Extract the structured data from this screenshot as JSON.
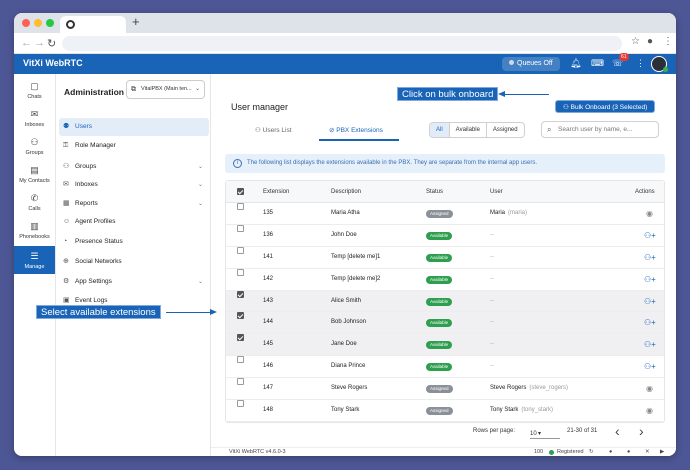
{
  "browser": {
    "traffic_colors": [
      "#ff5f57",
      "#febc2e",
      "#28c840"
    ],
    "new_tab": "+",
    "back": "←",
    "forward": "→",
    "reload": "↻",
    "star": "☆",
    "profile": "●",
    "menu": "⋮"
  },
  "appbar": {
    "title": "VitXi WebRTC",
    "queues_label": "Queues Off",
    "notification_count": "61",
    "dialpad_label": "⌨"
  },
  "rail": [
    {
      "label": "Chats",
      "icon": "chat-icon",
      "glyph": "▢"
    },
    {
      "label": "Inboxes",
      "icon": "inbox-icon",
      "glyph": "✉"
    },
    {
      "label": "Groups",
      "icon": "groups-icon",
      "glyph": "⚇"
    },
    {
      "label": "My Contacts",
      "icon": "contacts-icon",
      "glyph": "▤"
    },
    {
      "label": "Calls",
      "icon": "phone-icon",
      "glyph": "✆"
    },
    {
      "label": "Phonebooks",
      "icon": "phonebook-icon",
      "glyph": "▥"
    },
    {
      "label": "Manage",
      "icon": "manage-icon",
      "glyph": "☰"
    }
  ],
  "sidenav": {
    "title": "Administration",
    "tenant_select": "VitalPBX (Main ten...",
    "items": [
      {
        "label": "Users",
        "glyph": "⚉",
        "chevron": ""
      },
      {
        "label": "Role Manager",
        "glyph": "⚿",
        "chevron": ""
      },
      {
        "label": "Groups",
        "glyph": "⚇",
        "chevron": "⌄"
      },
      {
        "label": "Inboxes",
        "glyph": "✉",
        "chevron": "⌄"
      },
      {
        "label": "Reports",
        "glyph": "▦",
        "chevron": "⌄"
      },
      {
        "label": "Agent Profiles",
        "glyph": "☺",
        "chevron": ""
      },
      {
        "label": "Presence Status",
        "glyph": "◔",
        "chevron": ""
      },
      {
        "label": "Social Networks",
        "glyph": "⊕",
        "chevron": ""
      },
      {
        "label": "App Settings",
        "glyph": "⚙",
        "chevron": "⌄"
      },
      {
        "label": "Event Logs",
        "glyph": "▣",
        "chevron": ""
      }
    ]
  },
  "main": {
    "title": "User manager",
    "bulk_button": "Bulk Onboard (3 Selected)",
    "tabs": [
      "Users List",
      "PBX Extensions"
    ],
    "filters": [
      "All",
      "Available",
      "Assigned"
    ],
    "search_placeholder": "Search user by name, e...",
    "info_text": "The following list displays the extensions available in the PBX. They are separate from the internal app users.",
    "columns": [
      "Extension",
      "Description",
      "Status",
      "User",
      "Actions"
    ],
    "rows": [
      {
        "ext": "135",
        "desc": "Maria Atha",
        "status": "Assigned",
        "user": "Maria",
        "user_sub": "(maria)",
        "checked": false
      },
      {
        "ext": "136",
        "desc": "John Doe",
        "status": "Available",
        "user": "--",
        "user_sub": "",
        "checked": false
      },
      {
        "ext": "141",
        "desc": "Temp [delete me]1",
        "status": "Available",
        "user": "--",
        "user_sub": "",
        "checked": false
      },
      {
        "ext": "142",
        "desc": "Temp [delete me]2",
        "status": "Available",
        "user": "--",
        "user_sub": "",
        "checked": false
      },
      {
        "ext": "143",
        "desc": "Alice Smith",
        "status": "Available",
        "user": "--",
        "user_sub": "",
        "checked": true
      },
      {
        "ext": "144",
        "desc": "Bob Johnson",
        "status": "Available",
        "user": "--",
        "user_sub": "",
        "checked": true
      },
      {
        "ext": "145",
        "desc": "Jane Doe",
        "status": "Available",
        "user": "--",
        "user_sub": "",
        "checked": true
      },
      {
        "ext": "146",
        "desc": "Diana Prince",
        "status": "Available",
        "user": "--",
        "user_sub": "",
        "checked": false
      },
      {
        "ext": "147",
        "desc": "Steve Rogers",
        "status": "Assigned",
        "user": "Steve Rogers",
        "user_sub": "(steve_rogers)",
        "checked": false
      },
      {
        "ext": "148",
        "desc": "Tony Stark",
        "status": "Assigned",
        "user": "Tony Stark",
        "user_sub": "(tony_stark)",
        "checked": false
      }
    ],
    "pagination": {
      "rows_per_page_label": "Rows per page:",
      "rows_per_page": "10",
      "range": "21-30 of 31",
      "prev": "‹",
      "next": "›"
    },
    "footer": {
      "version": "VitXi WebRTC v4.6.0-3",
      "count": "100",
      "registered": "Registered",
      "icons": [
        "github-icon",
        "facebook-icon",
        "x-icon",
        "youtube-icon"
      ]
    }
  },
  "annotations": {
    "bulk_callout": "Click on bulk onboard",
    "select_callout": "Select available extensions"
  },
  "colors": {
    "primary": "#1a64b8",
    "available": "#2e9e4f",
    "assigned": "#8a8f98",
    "background": "#4e5796"
  }
}
